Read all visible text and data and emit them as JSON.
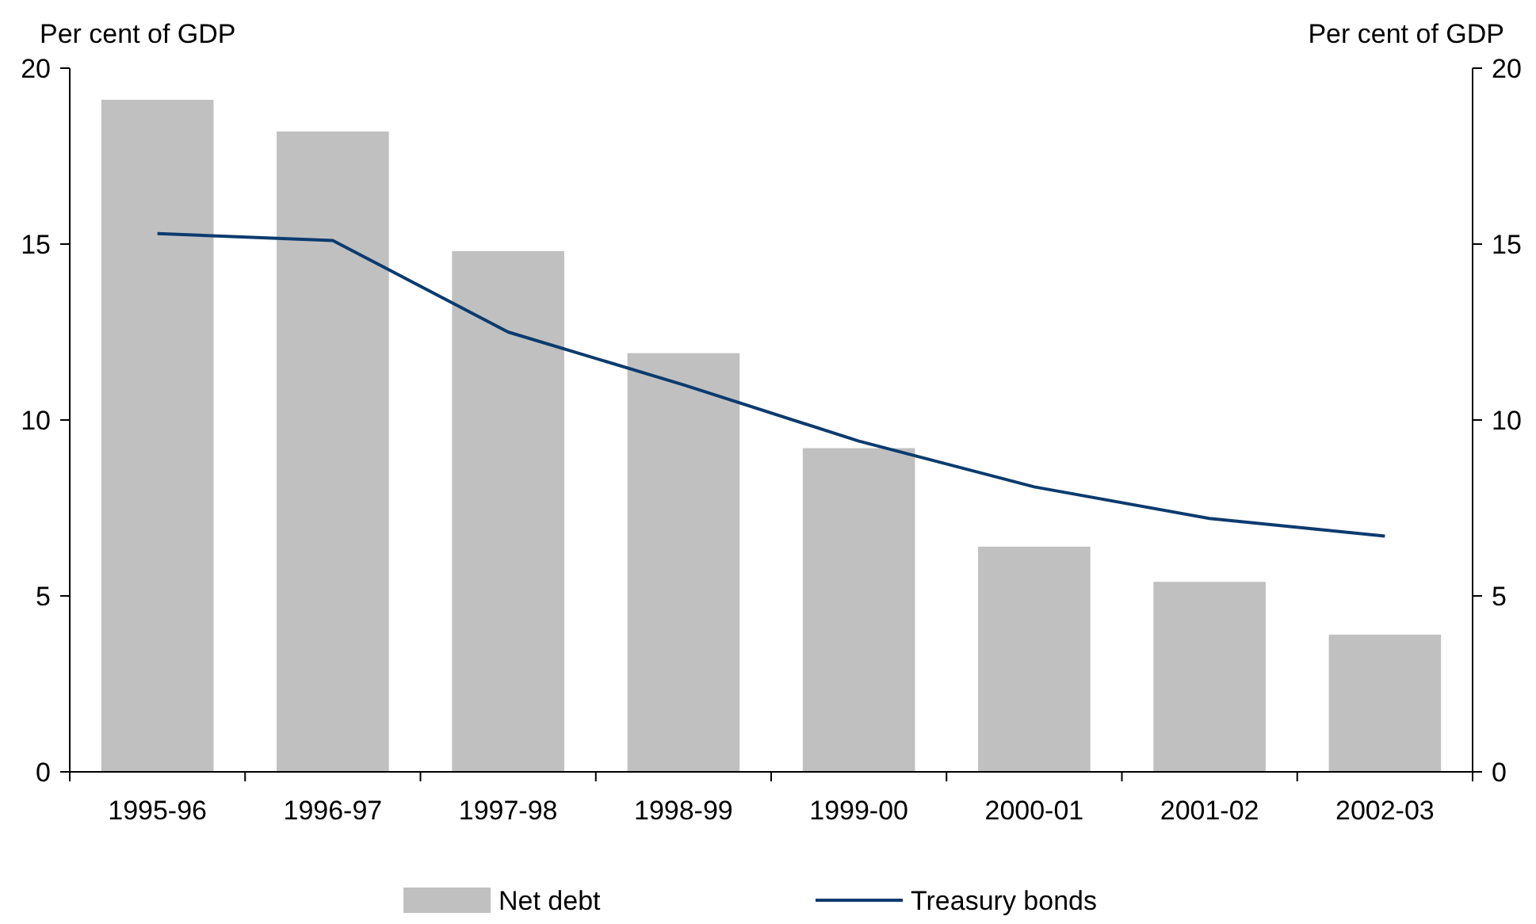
{
  "chart_data": {
    "type": "bar",
    "ylabel": "Per cent of GDP",
    "y2label": "Per cent of GDP",
    "categories": [
      "1995-96",
      "1996-97",
      "1997-98",
      "1998-99",
      "1999-00",
      "2000-01",
      "2001-02",
      "2002-03"
    ],
    "series": [
      {
        "name": "Net debt",
        "color": "#c0c0c0",
        "values": [
          19.1,
          18.2,
          14.8,
          11.9,
          9.2,
          6.4,
          5.4,
          3.9
        ]
      },
      {
        "name": "Treasury bonds",
        "type": "line",
        "color": "#0b3b6e",
        "values": [
          15.3,
          15.1,
          12.5,
          11.0,
          9.4,
          8.1,
          7.2,
          6.7
        ]
      }
    ],
    "ylim": [
      0,
      20
    ],
    "yticks": [
      0,
      5,
      10,
      15,
      20
    ],
    "y2lim": [
      0,
      20
    ],
    "y2ticks": [
      0,
      5,
      10,
      15,
      20
    ],
    "grid": false,
    "legend": "bottom"
  }
}
